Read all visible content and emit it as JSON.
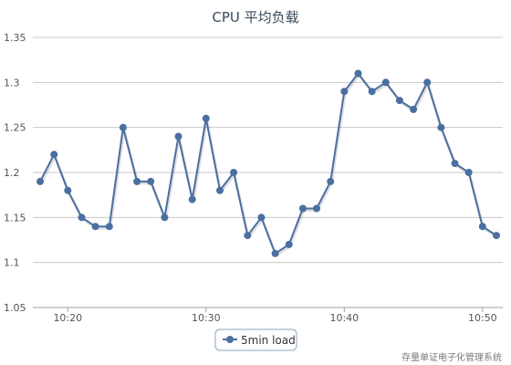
{
  "chart_data": {
    "type": "line",
    "title": "CPU 平均负载",
    "xlabel": "",
    "ylabel": "",
    "ylim": [
      1.05,
      1.35
    ],
    "y_ticks": [
      "1.05",
      "1.1",
      "1.15",
      "1.2",
      "1.25",
      "1.3",
      "1.35"
    ],
    "x_ticks": [
      "10:20",
      "10:30",
      "10:40",
      "10:50"
    ],
    "x_domain": [
      "10:18",
      "10:51"
    ],
    "grid": true,
    "legend_position": "bottom-center",
    "series": [
      {
        "name": "5min load",
        "color": "#4a6fa0",
        "x": [
          "10:18",
          "10:19",
          "10:20",
          "10:21",
          "10:22",
          "10:23",
          "10:24",
          "10:25",
          "10:26",
          "10:27",
          "10:28",
          "10:29",
          "10:30",
          "10:31",
          "10:32",
          "10:33",
          "10:34",
          "10:35",
          "10:36",
          "10:37",
          "10:38",
          "10:39",
          "10:40",
          "10:41",
          "10:42",
          "10:43",
          "10:44",
          "10:45",
          "10:46",
          "10:47",
          "10:48",
          "10:49",
          "10:50",
          "10:51"
        ],
        "values": [
          1.19,
          1.22,
          1.18,
          1.15,
          1.14,
          1.14,
          1.25,
          1.19,
          1.19,
          1.15,
          1.24,
          1.17,
          1.26,
          1.18,
          1.2,
          1.13,
          1.15,
          1.11,
          1.12,
          1.16,
          1.16,
          1.19,
          1.29,
          1.31,
          1.29,
          1.3,
          1.28,
          1.27,
          1.3,
          1.25,
          1.21,
          1.2,
          1.14,
          1.13
        ]
      }
    ]
  },
  "credit": "存量单证电子化管理系统"
}
